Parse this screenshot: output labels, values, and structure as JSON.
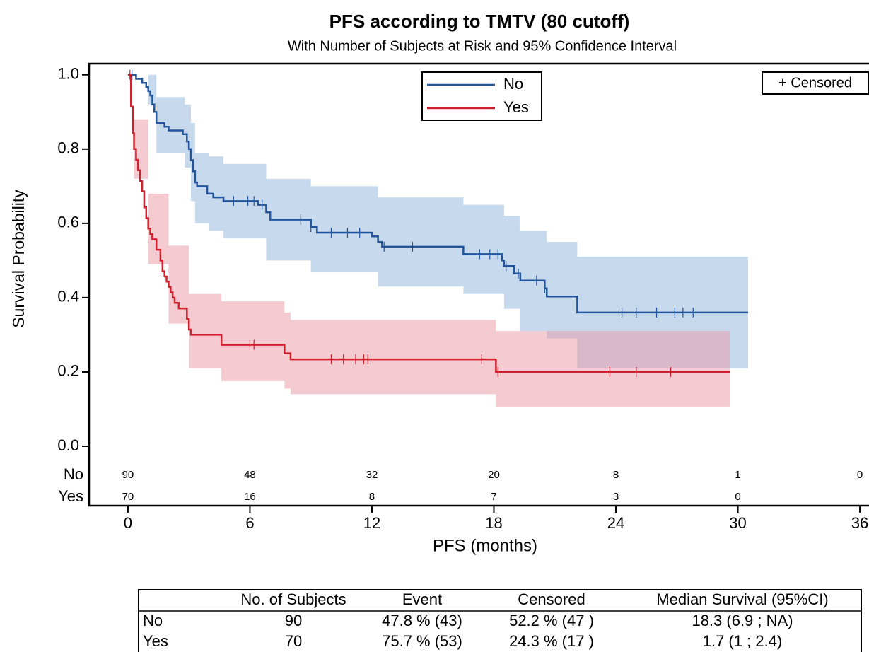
{
  "chart_data": {
    "type": "step",
    "title": "PFS according to TMTV (80 cutoff)",
    "subtitle": "With Number of Subjects at Risk and 95% Confidence Interval",
    "x_label": "PFS (months)",
    "y_label": "Survival Probability",
    "censored_label": "+ Censored",
    "legend_position": "top",
    "xlim": [
      -1.91,
      36.45
    ],
    "ylim": [
      -0.16,
      1.03
    ],
    "xticks": [
      0,
      6,
      12,
      18,
      24,
      30,
      36
    ],
    "yticks": [
      {
        "value": 0,
        "label": "0.0"
      },
      0.2,
      0.4,
      0.6,
      0.8,
      {
        "value": 1,
        "label": "1.0"
      }
    ],
    "series": [
      {
        "name": "No",
        "color": "#22559c",
        "band_color": "#8fb3dc",
        "x": [
          0,
          0.4,
          0.7,
          0.9,
          1.0,
          1.1,
          1.2,
          1.3,
          1.4,
          1.8,
          2.0,
          2.7,
          2.9,
          3.0,
          3.1,
          3.2,
          3.3,
          3.4,
          3.9,
          4.2,
          4.7,
          6.4,
          6.8,
          7.0,
          9.0,
          9.3,
          12.0,
          12.3,
          12.5,
          16.5,
          18.4,
          18.5,
          19.0,
          19.3,
          20.5,
          20.6,
          22.1,
          30.5
        ],
        "values": [
          1.0,
          0.989,
          0.978,
          0.967,
          0.956,
          0.944,
          0.92,
          0.9,
          0.87,
          0.86,
          0.85,
          0.84,
          0.82,
          0.8,
          0.77,
          0.74,
          0.71,
          0.7,
          0.68,
          0.67,
          0.66,
          0.65,
          0.63,
          0.61,
          0.59,
          0.575,
          0.565,
          0.55,
          0.537,
          0.517,
          0.5,
          0.485,
          0.465,
          0.446,
          0.425,
          0.403,
          0.36,
          0.36
        ],
        "censored_x": [
          0.2,
          5.2,
          5.9,
          6.2,
          6.6,
          8.5,
          9.0,
          10.0,
          10.8,
          11.4,
          12.6,
          14.0,
          17.3,
          17.8,
          18.2,
          18.6,
          19.2,
          20.1,
          20.5,
          24.3,
          25.0,
          26.0,
          26.9,
          27.3,
          27.8
        ],
        "ci_x": [
          0,
          1.0,
          1.4,
          2.8,
          3.1,
          3.3,
          4.0,
          4.7,
          6.8,
          9.0,
          12.3,
          16.5,
          18.5,
          19.3,
          20.6,
          22.1,
          30.5
        ],
        "ci_lower": [
          1.0,
          0.92,
          0.79,
          0.75,
          0.66,
          0.6,
          0.58,
          0.56,
          0.5,
          0.47,
          0.43,
          0.41,
          0.37,
          0.31,
          0.29,
          0.21,
          0.21
        ],
        "ci_upper": [
          1.0,
          1.0,
          0.94,
          0.92,
          0.87,
          0.79,
          0.78,
          0.76,
          0.72,
          0.7,
          0.67,
          0.65,
          0.62,
          0.58,
          0.55,
          0.51,
          0.51
        ],
        "at_risk": [
          90,
          48,
          32,
          20,
          8,
          1,
          0
        ]
      },
      {
        "name": "Yes",
        "color": "#d0202e",
        "band_color": "#eb97a6",
        "x": [
          0,
          0.15,
          0.25,
          0.3,
          0.4,
          0.5,
          0.6,
          0.7,
          0.8,
          0.9,
          1.0,
          1.1,
          1.2,
          1.4,
          1.6,
          1.7,
          1.8,
          1.9,
          2.0,
          2.1,
          2.2,
          2.3,
          2.5,
          2.9,
          3.0,
          3.1,
          4.6,
          7.7,
          8.0,
          18.1,
          29.6
        ],
        "values": [
          1.0,
          0.914,
          0.843,
          0.8,
          0.771,
          0.743,
          0.714,
          0.686,
          0.643,
          0.614,
          0.586,
          0.571,
          0.557,
          0.529,
          0.5,
          0.471,
          0.457,
          0.443,
          0.429,
          0.414,
          0.4,
          0.386,
          0.371,
          0.343,
          0.314,
          0.3,
          0.273,
          0.25,
          0.234,
          0.2,
          0.2
        ],
        "censored_x": [
          0.1,
          6.0,
          6.2,
          10.0,
          10.6,
          11.2,
          11.6,
          11.8,
          17.4,
          18.2,
          23.7,
          25.0,
          26.7
        ],
        "ci_x": [
          0,
          0.3,
          1.0,
          2.0,
          3.0,
          4.6,
          7.7,
          8.0,
          18.1,
          29.6
        ],
        "ci_lower": [
          1.0,
          0.72,
          0.49,
          0.33,
          0.21,
          0.175,
          0.155,
          0.14,
          0.105,
          0.105
        ],
        "ci_upper": [
          1.0,
          0.88,
          0.68,
          0.54,
          0.41,
          0.39,
          0.36,
          0.34,
          0.31,
          0.31
        ],
        "at_risk": [
          70,
          16,
          8,
          7,
          3,
          0,
          null
        ]
      }
    ],
    "risk_times": [
      0,
      6,
      12,
      18,
      24,
      30,
      36
    ],
    "summary_table": {
      "header": [
        "No. of Subjects",
        "Event",
        "Censored",
        "Median Survival (95%CI)"
      ],
      "rows": [
        [
          "No",
          "90",
          "47.8 % (43)",
          "52.2 % (47 )",
          "18.3 (6.9 ; NA)"
        ],
        [
          "Yes",
          "70",
          "75.7 % (53)",
          "24.3 % (17 )",
          "1.7 (1 ; 2.4)"
        ]
      ]
    }
  }
}
